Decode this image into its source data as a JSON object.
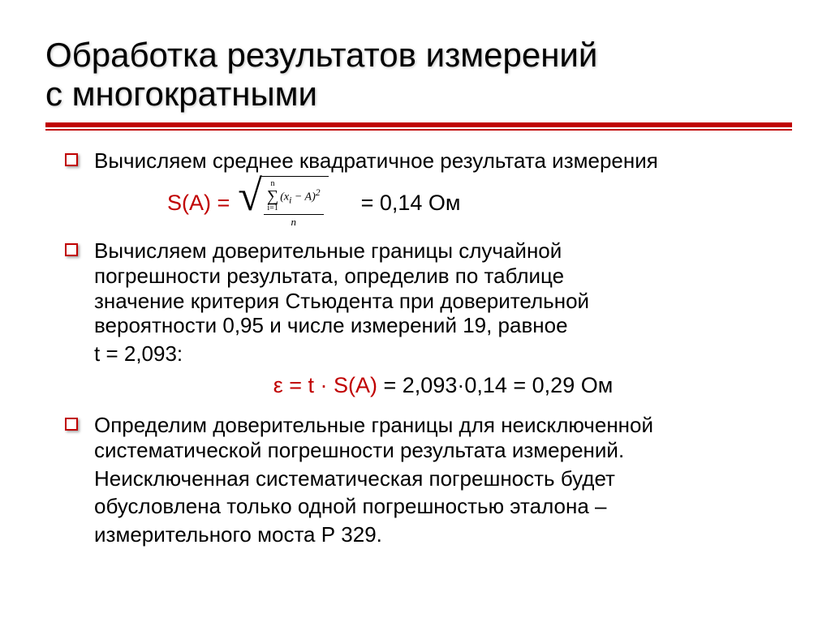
{
  "colors": {
    "accent": "#c00000",
    "text": "#000000",
    "background": "#ffffff"
  },
  "typography": {
    "title_fontsize": 42,
    "body_fontsize": 26,
    "formula_fontsize": 27,
    "small_formula_fontsize": 13
  },
  "title": {
    "line1": "Обработка результатов измерений",
    "line2": "с многократными"
  },
  "items": [
    {
      "text": "Вычисляем среднее квадратичное результата измерения",
      "formula": {
        "lhs": "S(A)  =",
        "sum_upper": "n",
        "sum_lower": "i=1",
        "expr": "(x",
        "expr_sub": "i",
        "expr_tail": " − A)",
        "expr_sup": "2",
        "denom": "n",
        "result": "=   0,14 Ом"
      }
    },
    {
      "text1": "Вычисляем доверительные границы случайной",
      "text2": "погрешности результата, определив по таблице",
      "text3": "значение критерия Стьюдента при доверительной",
      "text4": "вероятности 0,95 и числе измерений 19, равное",
      "t_line": "t = 2,093:",
      "epsilon": {
        "lhs": "ε = t · S(A)",
        "rhs": " = 2,093·0,14 = 0,29 Ом"
      }
    },
    {
      "text1": "Определим доверительные границы для неисключенной",
      "text2": "систематической погрешности результата измерений.",
      "text3": "Неисключенная систематическая погрешность будет",
      "text4": "обусловлена только одной погрешностью эталона –",
      "text5": "измерительного моста Р 329."
    }
  ]
}
